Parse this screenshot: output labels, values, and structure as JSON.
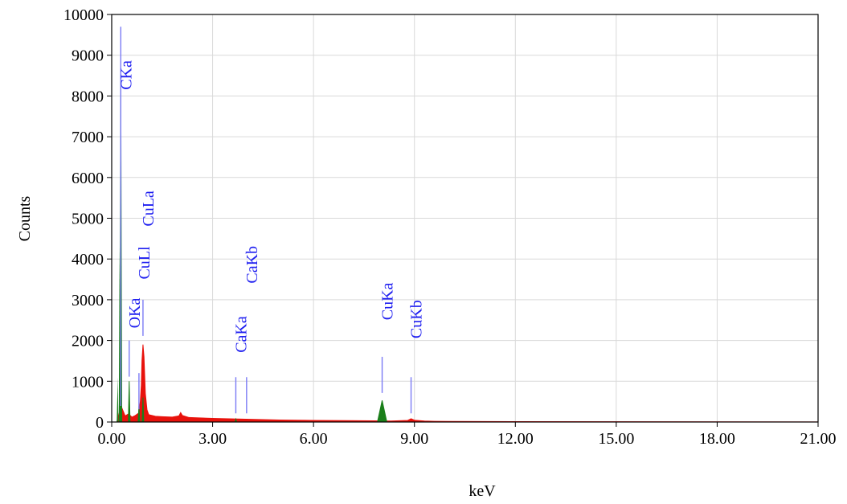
{
  "chart_data": {
    "type": "area",
    "xlabel": "keV",
    "ylabel": "Counts",
    "xlim": [
      0,
      21
    ],
    "ylim": [
      0,
      10000
    ],
    "xticks": [
      "0.00",
      "3.00",
      "6.00",
      "9.00",
      "12.00",
      "15.00",
      "18.00",
      "21.00"
    ],
    "yticks": [
      "0",
      "1000",
      "2000",
      "3000",
      "4000",
      "5000",
      "6000",
      "7000",
      "8000",
      "9000",
      "10000"
    ],
    "grid": true,
    "background_spectrum": {
      "color": "#e8120c",
      "points": [
        [
          0.15,
          0
        ],
        [
          0.2,
          150
        ],
        [
          0.25,
          300
        ],
        [
          0.3,
          350
        ],
        [
          0.4,
          150
        ],
        [
          0.5,
          200
        ],
        [
          0.6,
          120
        ],
        [
          0.7,
          160
        ],
        [
          0.8,
          220
        ],
        [
          0.85,
          500
        ],
        [
          0.88,
          900
        ],
        [
          0.9,
          1500
        ],
        [
          0.93,
          1900
        ],
        [
          0.96,
          1600
        ],
        [
          1.0,
          700
        ],
        [
          1.05,
          300
        ],
        [
          1.1,
          180
        ],
        [
          1.3,
          140
        ],
        [
          1.5,
          130
        ],
        [
          1.8,
          120
        ],
        [
          2.0,
          150
        ],
        [
          2.05,
          230
        ],
        [
          2.1,
          160
        ],
        [
          2.3,
          110
        ],
        [
          2.6,
          100
        ],
        [
          3.0,
          90
        ],
        [
          3.5,
          80
        ],
        [
          4.0,
          70
        ],
        [
          4.5,
          60
        ],
        [
          5.0,
          50
        ],
        [
          5.5,
          45
        ],
        [
          6.0,
          40
        ],
        [
          7.0,
          35
        ],
        [
          7.8,
          30
        ],
        [
          8.3,
          25
        ],
        [
          8.8,
          40
        ],
        [
          8.9,
          80
        ],
        [
          9.0,
          45
        ],
        [
          9.3,
          25
        ],
        [
          9.6,
          18
        ],
        [
          10,
          15
        ],
        [
          12,
          10
        ],
        [
          15,
          7
        ],
        [
          18,
          5
        ],
        [
          21,
          3
        ]
      ]
    },
    "peaks": [
      {
        "label": "CKa",
        "x": 0.27,
        "y": 9700,
        "label_y_top": 8150,
        "peak_height": 8500,
        "color": "#1a7f1a"
      },
      {
        "label": "OKa",
        "x": 0.52,
        "y": 2000,
        "label_y_top": 2300,
        "peak_height": 1000,
        "color": "#1a7f1a"
      },
      {
        "label": "CuLl",
        "x": 0.81,
        "y": 1200,
        "label_y_top": 3500,
        "peak_height": 400,
        "color": "#1a7f1a"
      },
      {
        "label": "CuLa",
        "x": 0.93,
        "y": 3000,
        "label_y_top": 4800,
        "peak_height": 600,
        "color": "#1a7f1a"
      },
      {
        "label": "CaKa",
        "x": 3.69,
        "y": 1100,
        "label_y_top": 1700,
        "peak_height": 70,
        "color": "#1a7f1a"
      },
      {
        "label": "CaKb",
        "x": 4.01,
        "y": 1100,
        "label_y_top": 3400,
        "peak_height": 0,
        "color": "#1a7f1a"
      },
      {
        "label": "CuKa",
        "x": 8.04,
        "y": 1600,
        "label_y_top": 2500,
        "peak_height": 530,
        "color": "#1a7f1a"
      },
      {
        "label": "CuKb",
        "x": 8.9,
        "y": 1100,
        "label_y_top": 2050,
        "peak_height": 0,
        "color": "#1a7f1a"
      }
    ]
  }
}
